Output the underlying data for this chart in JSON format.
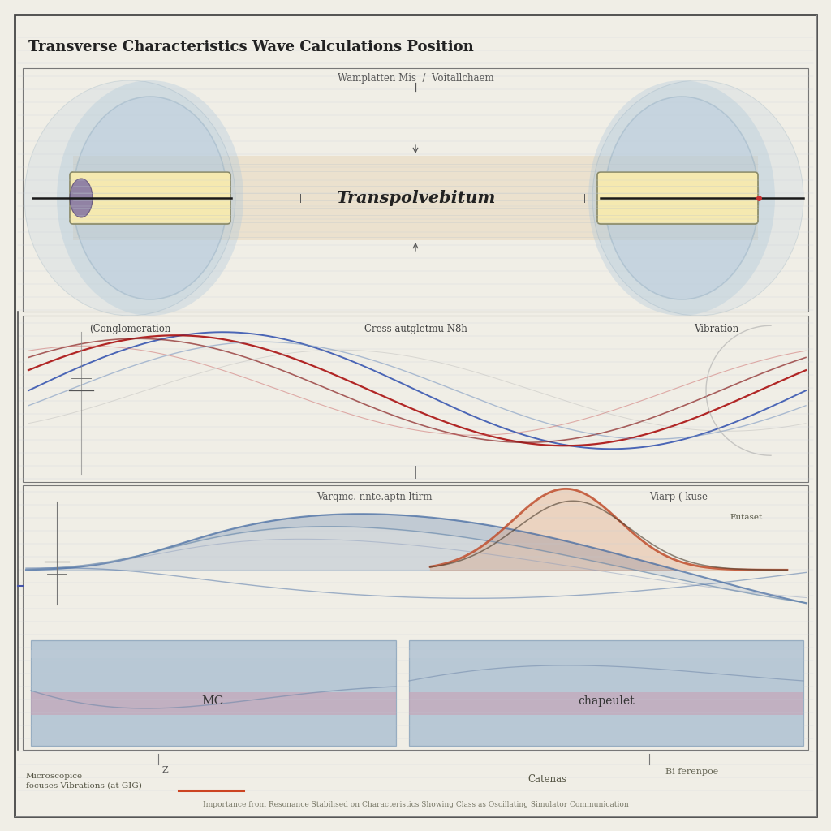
{
  "title": "Transverse Characteristics Wave Calculations Position",
  "background_color": "#f0eee6",
  "border_color": "#555555",
  "section1_label": "Transpolvebitum",
  "section2_label_left": "(Conglomeration",
  "section2_label_mid": "Cress autgletmu N8h",
  "section2_label_right": "Vibration",
  "section3_label_mid": "Varqmc. nnte.aptn ltirm",
  "section3_label_right": "Viarp ( kuse",
  "wave_color_blue": "#4a6fa5",
  "wave_color_red": "#b03030",
  "wave_color_darkred": "#8a2020",
  "ellipse_fill": "#b0c8dc",
  "ellipse_stroke": "#6a8faa",
  "rect_fill_yellow": "#f5e9b0",
  "rect_fill_blue": "#8aaac8",
  "rect_fill_pink": "#c8a0b4",
  "tube_fill": "#e8d8bc",
  "footer_text": "Importance from Resonance Stabilised on Characteristics Showing Class as Oscillating Simulator Communication",
  "note_text": "Microscopice\nfocuses Vibrations (at GIG)",
  "note_text2": "Catenas",
  "bottom_label": "MC",
  "bottom_label2": "chapeulet",
  "bottom_note": "Bi ferenpoe",
  "amplitude_label": "Wamplatten Mis  /  Voitallchaem",
  "eutaset_label": "Eutaset"
}
